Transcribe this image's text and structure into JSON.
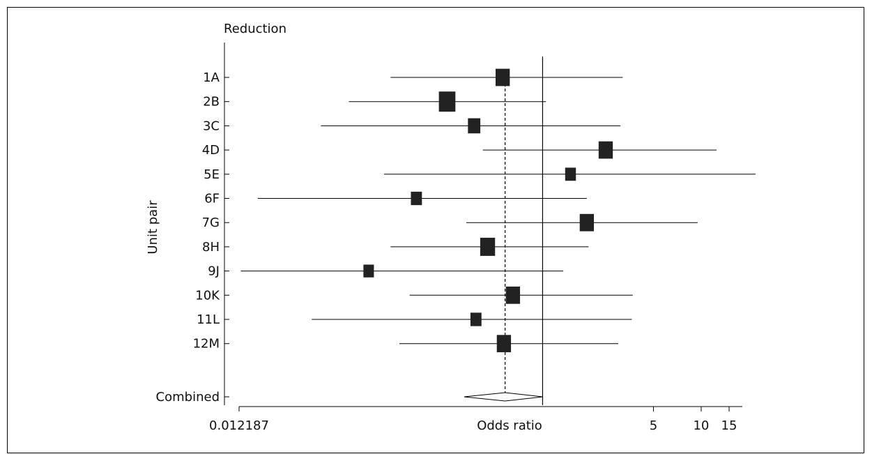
{
  "chart_data": {
    "type": "forest",
    "title": "Reduction",
    "xlabel": "Odds ratio",
    "ylabel": "Unit pair",
    "xscale": "log",
    "x_tick_labels": [
      {
        "value": 0.012187,
        "label": "0.012187"
      },
      {
        "value": 5,
        "label": "5"
      },
      {
        "value": 10,
        "label": "10"
      },
      {
        "value": 15,
        "label": "15"
      }
    ],
    "null_line": 1,
    "pooled_estimate": 0.58,
    "studies": [
      {
        "label": "1A",
        "or": 0.56,
        "lo": 0.11,
        "hi": 3.2,
        "weight": 0.45
      },
      {
        "label": "2B",
        "or": 0.25,
        "lo": 0.06,
        "hi": 1.05,
        "weight": 0.62
      },
      {
        "label": "3C",
        "or": 0.37,
        "lo": 0.04,
        "hi": 3.1,
        "weight": 0.32
      },
      {
        "label": "4D",
        "or": 2.5,
        "lo": 0.42,
        "hi": 12.5,
        "weight": 0.45
      },
      {
        "label": "5E",
        "or": 1.5,
        "lo": 0.1,
        "hi": 22.0,
        "weight": 0.2
      },
      {
        "label": "6F",
        "or": 0.16,
        "lo": 0.016,
        "hi": 1.9,
        "weight": 0.22
      },
      {
        "label": "7G",
        "or": 1.9,
        "lo": 0.33,
        "hi": 9.5,
        "weight": 0.45
      },
      {
        "label": "8H",
        "or": 0.45,
        "lo": 0.11,
        "hi": 1.95,
        "weight": 0.5
      },
      {
        "label": "9J",
        "or": 0.08,
        "lo": 0.0125,
        "hi": 1.35,
        "weight": 0.18
      },
      {
        "label": "10K",
        "or": 0.65,
        "lo": 0.145,
        "hi": 3.7,
        "weight": 0.45
      },
      {
        "label": "11L",
        "or": 0.38,
        "lo": 0.035,
        "hi": 3.65,
        "weight": 0.22
      },
      {
        "label": "12M",
        "or": 0.57,
        "lo": 0.125,
        "hi": 3.0,
        "weight": 0.45
      }
    ],
    "combined": {
      "label": "Combined",
      "or": 0.58,
      "lo": 0.32,
      "hi": 1.0
    }
  }
}
